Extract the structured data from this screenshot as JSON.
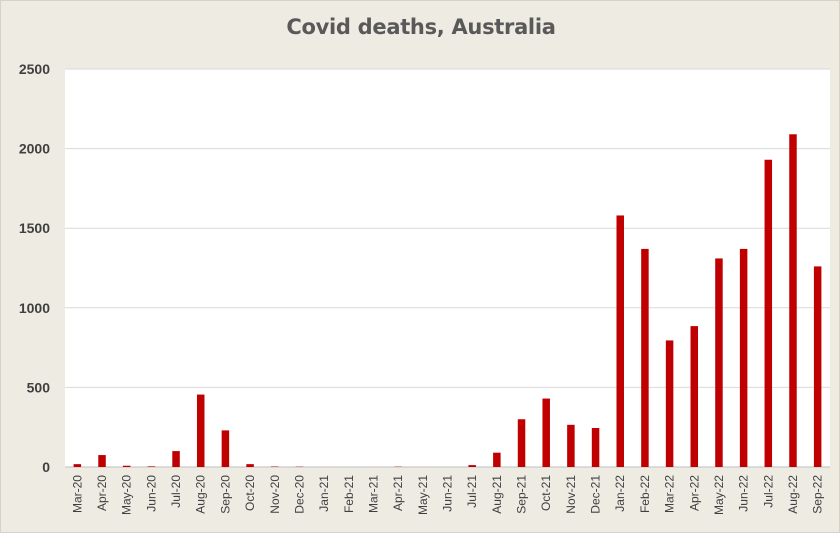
{
  "chart_data": {
    "type": "bar",
    "title": "Covid deaths, Australia",
    "xlabel": "",
    "ylabel": "",
    "ylim": [
      0,
      2500
    ],
    "yticks": [
      0,
      500,
      1000,
      1500,
      2000,
      2500
    ],
    "grid": true,
    "legend": "none",
    "bar_color": "#c00000",
    "categories": [
      "Mar-20",
      "Apr-20",
      "May-20",
      "Jun-20",
      "Jul-20",
      "Aug-20",
      "Sep-20",
      "Oct-20",
      "Nov-20",
      "Dec-20",
      "Jan-21",
      "Feb-21",
      "Mar-21",
      "Apr-21",
      "May-21",
      "Jun-21",
      "Jul-21",
      "Aug-21",
      "Sep-21",
      "Oct-21",
      "Nov-21",
      "Dec-21",
      "Jan-22",
      "Feb-22",
      "Mar-22",
      "Apr-22",
      "May-22",
      "Jun-22",
      "Jul-22",
      "Aug-22",
      "Sep-22"
    ],
    "values": [
      18,
      75,
      8,
      4,
      100,
      455,
      230,
      18,
      3,
      2,
      0,
      0,
      0,
      2,
      0,
      0,
      12,
      90,
      300,
      430,
      265,
      245,
      1580,
      1370,
      795,
      885,
      1310,
      1370,
      1930,
      2090,
      1260
    ]
  }
}
